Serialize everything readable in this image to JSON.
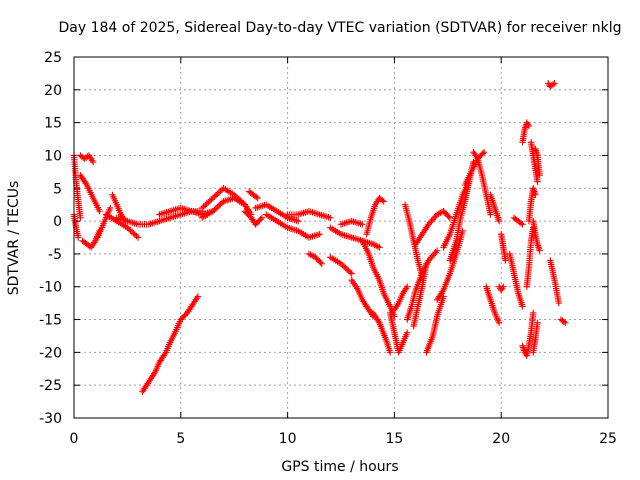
{
  "chart_data": {
    "type": "scatter",
    "title": "Day 184 of 2025, Sidereal Day-to-day VTEC variation (SDTVAR) for receiver nklg",
    "xlabel": "GPS time / hours",
    "ylabel": "SDTVAR / TECUs",
    "xlim": [
      0,
      25
    ],
    "ylim": [
      -30,
      25
    ],
    "xticks": [
      0,
      5,
      10,
      15,
      20,
      25
    ],
    "yticks": [
      -30,
      -25,
      -20,
      -15,
      -10,
      -5,
      0,
      5,
      10,
      15,
      20,
      25
    ],
    "grid": true,
    "marker": "+",
    "color": "#ff0000",
    "series": [
      {
        "name": "s1",
        "x": [
          0.0,
          0.1,
          0.2,
          0.3
        ],
        "y": [
          10.0,
          6.0,
          3.0,
          0.5
        ]
      },
      {
        "name": "s2",
        "x": [
          0.0,
          0.1,
          0.2
        ],
        "y": [
          1.0,
          -1.0,
          -2.5
        ]
      },
      {
        "name": "s3",
        "x": [
          0.3,
          0.5,
          0.7,
          0.9
        ],
        "y": [
          10.0,
          9.5,
          10.0,
          9.0
        ]
      },
      {
        "name": "s4",
        "x": [
          0.3,
          0.6,
          0.9,
          1.2
        ],
        "y": [
          7.0,
          5.5,
          3.5,
          1.5
        ]
      },
      {
        "name": "s5",
        "x": [
          0.4,
          0.6,
          0.8,
          1.0,
          1.2
        ],
        "y": [
          -3.0,
          -3.5,
          -4.0,
          -3.0,
          -1.5
        ]
      },
      {
        "name": "s6",
        "x": [
          1.1,
          1.3,
          1.5,
          1.7
        ],
        "y": [
          -2.5,
          -1.0,
          0.5,
          2.0
        ]
      },
      {
        "name": "s7",
        "x": [
          1.5,
          2.0,
          2.5,
          3.0
        ],
        "y": [
          1.0,
          0.0,
          -1.0,
          -2.5
        ]
      },
      {
        "name": "s8",
        "x": [
          1.8,
          2.0,
          2.2,
          2.4
        ],
        "y": [
          4.0,
          2.5,
          1.0,
          0.0
        ]
      },
      {
        "name": "s9",
        "x": [
          2.0,
          2.5,
          3.0,
          3.5,
          4.0,
          4.5,
          5.0,
          5.5,
          6.0
        ],
        "y": [
          0.5,
          0.0,
          -0.5,
          -0.5,
          0.0,
          0.5,
          1.0,
          1.5,
          1.5
        ]
      },
      {
        "name": "s10",
        "x": [
          4.0,
          4.5,
          5.0,
          5.5,
          6.0,
          6.5
        ],
        "y": [
          1.0,
          1.5,
          2.0,
          1.5,
          1.0,
          1.5
        ]
      },
      {
        "name": "s11",
        "x": [
          3.2,
          3.5,
          3.8,
          4.0,
          4.3,
          4.5,
          4.8,
          5.0,
          5.3,
          5.6,
          5.8
        ],
        "y": [
          -26.0,
          -24.5,
          -23.0,
          -21.5,
          -20.0,
          -18.5,
          -16.5,
          -15.0,
          -14.0,
          -12.5,
          -11.5
        ]
      },
      {
        "name": "s12",
        "x": [
          6.0,
          6.5,
          7.0,
          7.5,
          8.0
        ],
        "y": [
          2.0,
          3.5,
          5.0,
          4.0,
          2.5
        ]
      },
      {
        "name": "s13",
        "x": [
          6.0,
          6.5,
          7.0,
          7.5,
          8.0,
          8.3
        ],
        "y": [
          0.5,
          1.5,
          3.0,
          3.5,
          2.5,
          1.0
        ]
      },
      {
        "name": "s14",
        "x": [
          8.2,
          8.4,
          8.6
        ],
        "y": [
          4.5,
          4.0,
          3.5
        ]
      },
      {
        "name": "s15",
        "x": [
          8.0,
          8.3,
          8.5,
          8.8
        ],
        "y": [
          1.5,
          0.5,
          -0.5,
          0.5
        ]
      },
      {
        "name": "s16",
        "x": [
          8.5,
          9.0,
          9.5,
          10.0,
          10.5
        ],
        "y": [
          2.0,
          2.5,
          1.5,
          0.5,
          0.0
        ]
      },
      {
        "name": "s17",
        "x": [
          9.0,
          9.5,
          10.0,
          10.5,
          11.0,
          11.5
        ],
        "y": [
          1.0,
          0.0,
          -1.0,
          -1.5,
          -2.5,
          -2.0
        ]
      },
      {
        "name": "s18",
        "x": [
          10.0,
          10.5,
          11.0,
          11.5,
          12.0
        ],
        "y": [
          1.0,
          1.0,
          1.5,
          1.0,
          0.5
        ]
      },
      {
        "name": "s19",
        "x": [
          11.0,
          11.3,
          11.6
        ],
        "y": [
          -5.0,
          -5.5,
          -6.5
        ]
      },
      {
        "name": "s20",
        "x": [
          12.0,
          12.5,
          13.0,
          13.5,
          14.0,
          14.3
        ],
        "y": [
          -1.0,
          -2.0,
          -2.5,
          -3.0,
          -3.5,
          -4.0
        ]
      },
      {
        "name": "s21",
        "x": [
          12.0,
          12.5,
          13.0
        ],
        "y": [
          -5.5,
          -6.5,
          -8.0
        ]
      },
      {
        "name": "s22",
        "x": [
          12.5,
          13.0,
          13.5
        ],
        "y": [
          -0.5,
          0.0,
          -0.5
        ]
      },
      {
        "name": "s23",
        "x": [
          13.0,
          13.3,
          13.5,
          13.8,
          14.0
        ],
        "y": [
          -9.0,
          -10.5,
          -12.0,
          -13.5,
          -14.5
        ]
      },
      {
        "name": "s24",
        "x": [
          13.5,
          13.8,
          14.0,
          14.3,
          14.5,
          14.8,
          15.0
        ],
        "y": [
          -3.0,
          -5.0,
          -7.0,
          -9.0,
          -11.0,
          -13.0,
          -14.5
        ]
      },
      {
        "name": "s25",
        "x": [
          13.7,
          13.9,
          14.1,
          14.3,
          14.5
        ],
        "y": [
          -2.0,
          0.5,
          2.5,
          3.5,
          3.0
        ]
      },
      {
        "name": "s26",
        "x": [
          14.0,
          14.3,
          14.6,
          14.8
        ],
        "y": [
          -14.0,
          -15.5,
          -18.0,
          -20.0
        ]
      },
      {
        "name": "s27",
        "x": [
          14.8,
          15.0,
          15.2,
          15.4,
          15.6
        ],
        "y": [
          -14.0,
          -17.0,
          -20.0,
          -18.5,
          -17.0
        ]
      },
      {
        "name": "s28",
        "x": [
          15.0,
          15.2,
          15.4,
          15.6
        ],
        "y": [
          -13.5,
          -12.5,
          -11.0,
          -10.0
        ]
      },
      {
        "name": "s29",
        "x": [
          15.5,
          15.7,
          15.9,
          16.1,
          16.3
        ],
        "y": [
          2.5,
          0.0,
          -3.0,
          -6.0,
          -8.5
        ]
      },
      {
        "name": "s30",
        "x": [
          15.6,
          15.8,
          16.0,
          16.3,
          16.6,
          17.0
        ],
        "y": [
          -15.0,
          -13.0,
          -10.5,
          -8.0,
          -6.0,
          -4.5
        ]
      },
      {
        "name": "s31",
        "x": [
          15.9,
          16.1,
          16.3,
          16.5
        ],
        "y": [
          -16.0,
          -13.0,
          -10.0,
          -6.5
        ]
      },
      {
        "name": "s32",
        "x": [
          16.0,
          16.3,
          16.6,
          17.0,
          17.3,
          17.6
        ],
        "y": [
          -3.5,
          -2.0,
          -0.5,
          1.0,
          1.5,
          0.5
        ]
      },
      {
        "name": "s33",
        "x": [
          16.5,
          16.8,
          17.0,
          17.3
        ],
        "y": [
          -20.0,
          -17.5,
          -14.5,
          -11.5
        ]
      },
      {
        "name": "s34",
        "x": [
          17.0,
          17.3,
          17.6,
          17.9,
          18.2
        ],
        "y": [
          -12.0,
          -10.5,
          -8.0,
          -5.0,
          -1.5
        ]
      },
      {
        "name": "s35",
        "x": [
          17.3,
          17.6,
          17.9,
          18.2,
          18.5
        ],
        "y": [
          -4.0,
          -2.0,
          1.0,
          4.0,
          6.0
        ]
      },
      {
        "name": "s36",
        "x": [
          17.6,
          17.9,
          18.1,
          18.3,
          18.5,
          18.7
        ],
        "y": [
          -6.0,
          -3.0,
          0.5,
          3.0,
          6.0,
          9.0
        ]
      },
      {
        "name": "s37",
        "x": [
          18.3,
          18.6,
          18.9,
          19.2
        ],
        "y": [
          5.5,
          7.5,
          9.5,
          10.5
        ]
      },
      {
        "name": "s38",
        "x": [
          18.7,
          18.9,
          19.1,
          19.3,
          19.5
        ],
        "y": [
          10.5,
          9.5,
          7.0,
          4.0,
          1.0
        ]
      },
      {
        "name": "s39",
        "x": [
          19.3,
          19.5,
          19.7,
          19.9
        ],
        "y": [
          -10.0,
          -12.0,
          -14.0,
          -15.5
        ]
      },
      {
        "name": "s40",
        "x": [
          19.5,
          19.7,
          19.9
        ],
        "y": [
          4.0,
          2.0,
          0.0
        ]
      },
      {
        "name": "s41",
        "x": [
          19.9,
          20.0,
          20.1
        ],
        "y": [
          -10.0,
          -10.5,
          -10.0
        ]
      },
      {
        "name": "s42",
        "x": [
          20.0,
          20.1,
          20.2
        ],
        "y": [
          -2.0,
          -4.0,
          -6.0
        ]
      },
      {
        "name": "s43",
        "x": [
          20.4,
          20.6,
          20.8,
          21.0
        ],
        "y": [
          -5.0,
          -8.0,
          -11.0,
          -13.0
        ]
      },
      {
        "name": "s44",
        "x": [
          20.6,
          20.8,
          21.0
        ],
        "y": [
          0.5,
          0.0,
          -0.5
        ]
      },
      {
        "name": "s45",
        "x": [
          21.0,
          21.1,
          21.2,
          21.3,
          21.4,
          21.5
        ],
        "y": [
          -19.0,
          -20.0,
          -20.5,
          -19.0,
          -17.0,
          -14.0
        ]
      },
      {
        "name": "s46",
        "x": [
          21.0,
          21.1,
          21.2,
          21.3
        ],
        "y": [
          12.0,
          14.0,
          15.0,
          14.5
        ]
      },
      {
        "name": "s47",
        "x": [
          21.2,
          21.3,
          21.4,
          21.5
        ],
        "y": [
          -10.0,
          -7.0,
          -3.0,
          -1.0
        ]
      },
      {
        "name": "s48",
        "x": [
          21.3,
          21.4,
          21.5,
          21.6
        ],
        "y": [
          0.0,
          3.0,
          5.0,
          4.0
        ]
      },
      {
        "name": "s49",
        "x": [
          21.4,
          21.5,
          21.6,
          21.7
        ],
        "y": [
          12.0,
          10.0,
          8.0,
          6.0
        ]
      },
      {
        "name": "s50",
        "x": [
          21.5,
          21.6,
          21.7
        ],
        "y": [
          -20.0,
          -18.0,
          -15.5
        ]
      },
      {
        "name": "s51",
        "x": [
          21.5,
          21.6,
          21.7,
          21.8
        ],
        "y": [
          0.0,
          -2.0,
          -3.5,
          -4.5
        ]
      },
      {
        "name": "s52",
        "x": [
          21.6,
          21.7,
          21.8
        ],
        "y": [
          11.0,
          10.0,
          7.0
        ]
      },
      {
        "name": "s53",
        "x": [
          22.2,
          22.3,
          22.5
        ],
        "y": [
          21.0,
          20.5,
          21.0
        ]
      },
      {
        "name": "s54",
        "x": [
          22.3,
          22.5,
          22.7
        ],
        "y": [
          -6.0,
          -9.0,
          -12.5
        ]
      },
      {
        "name": "s55",
        "x": [
          22.8,
          23.0
        ],
        "y": [
          -15.0,
          -15.5
        ]
      }
    ]
  }
}
